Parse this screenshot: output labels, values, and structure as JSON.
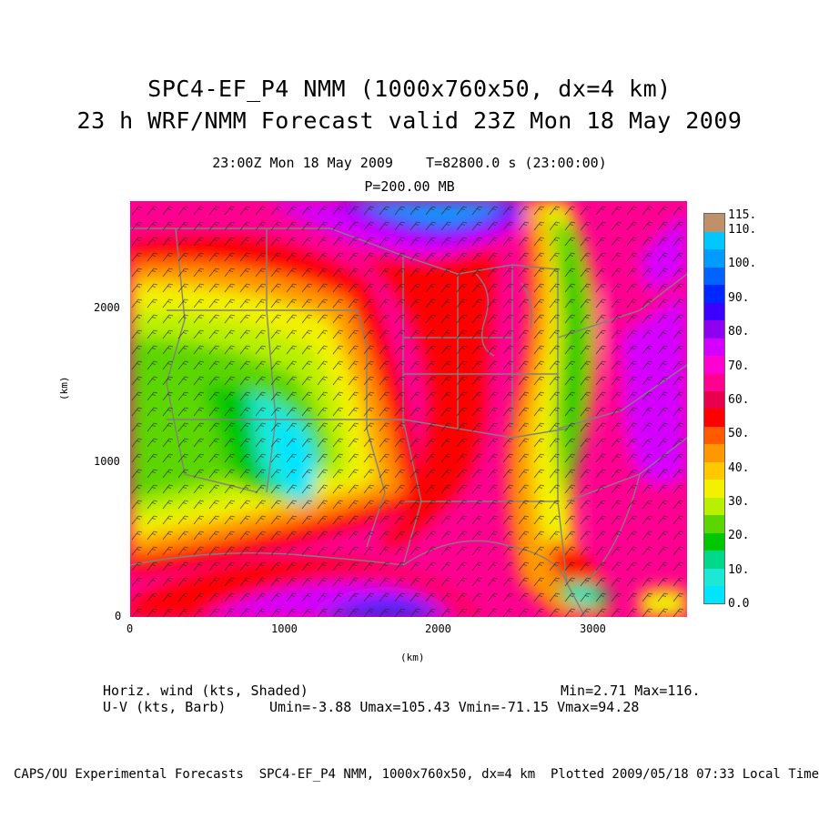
{
  "header": {
    "title_line1": "SPC4-EF_P4 NMM (1000x760x50, dx=4 km)",
    "title_line2": "23 h WRF/NMM Forecast valid 23Z Mon 18 May 2009",
    "valid_time": "23:00Z Mon 18 May 2009    T=82800.0 s (23:00:00)",
    "pressure": "P=200.00 MB"
  },
  "axes": {
    "x_label": "(km)",
    "y_label": "(km)",
    "x_ticks": [
      "0",
      "1000",
      "2000",
      "3000"
    ],
    "y_ticks": [
      "2000",
      "1000",
      "0"
    ]
  },
  "colorbar": {
    "labels": [
      "115.",
      "110.",
      "100.",
      "90.",
      "80.",
      "70.",
      "60.",
      "50.",
      "40.",
      "30.",
      "20.",
      "10.",
      "0.0"
    ],
    "colors": [
      "#00e5ff",
      "#1de8d6",
      "#00d98a",
      "#00c700",
      "#5cd600",
      "#b8f000",
      "#f2f200",
      "#ffc800",
      "#ff9800",
      "#ff5a00",
      "#ff0000",
      "#e8004f",
      "#ff0090",
      "#ff00d0",
      "#d400ff",
      "#8e00f0",
      "#3c00ff",
      "#0027ff",
      "#0062ff",
      "#009cff",
      "#00c8ff",
      "#c0906a"
    ]
  },
  "legend": {
    "field": "Horiz. wind (kts, Shaded)",
    "barbs": "U-V (kts, Barb)",
    "minmax": "Min=2.71 Max=116.",
    "uv_stats": "Umin=-3.88 Umax=105.43 Vmin=-71.15 Vmax=94.28"
  },
  "footer": "CAPS/OU Experimental Forecasts  SPC4-EF_P4 NMM, 1000x760x50, dx=4 km  Plotted 2009/05/18 07:33 Local Time"
}
